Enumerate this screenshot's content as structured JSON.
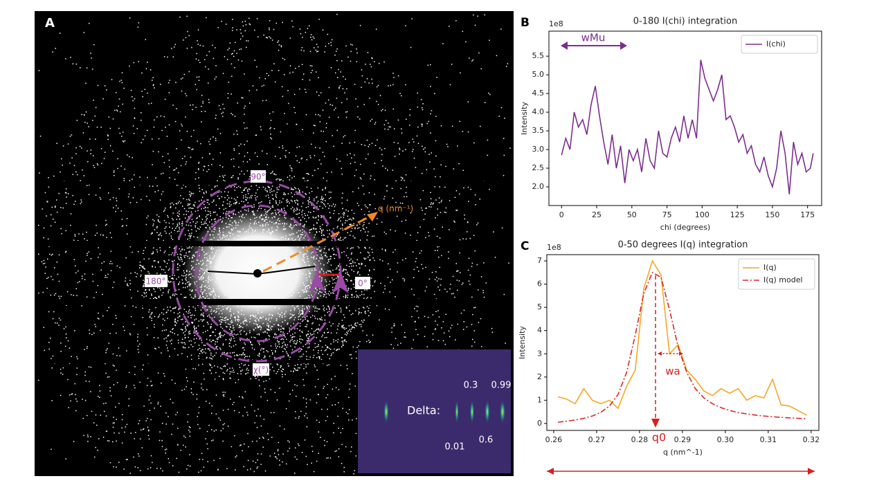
{
  "panel_a": {
    "label": "A",
    "angle_labels": [
      "90°",
      "180°",
      "0°"
    ],
    "chi_label": "χ(°)",
    "q_label": "q (nm⁻¹)",
    "inset": {
      "label": "Delta:",
      "values": [
        0.01,
        0.3,
        0.6,
        0.99
      ]
    }
  },
  "chart_data": [
    {
      "type": "line",
      "panel_label": "B",
      "title": "0-180 I(chi) integration",
      "xlabel": "chi (degrees)",
      "ylabel": "Intensity",
      "offset_text": "1e8",
      "x": [
        0,
        3,
        6,
        9,
        12,
        15,
        18,
        21,
        24,
        27,
        30,
        33,
        36,
        39,
        42,
        45,
        48,
        51,
        54,
        57,
        60,
        63,
        66,
        69,
        72,
        75,
        78,
        81,
        84,
        87,
        90,
        93,
        96,
        99,
        102,
        105,
        108,
        111,
        114,
        117,
        120,
        123,
        126,
        129,
        132,
        135,
        138,
        141,
        144,
        147,
        150,
        153,
        156,
        159,
        162,
        165,
        168,
        171,
        174,
        177,
        179
      ],
      "series": [
        {
          "name": "I(chi)",
          "color": "#7b2d8e",
          "values": [
            2.85,
            3.3,
            3.0,
            4.0,
            3.6,
            3.8,
            3.4,
            4.2,
            4.7,
            3.9,
            3.2,
            2.6,
            3.4,
            2.5,
            3.1,
            2.1,
            3.0,
            2.7,
            3.0,
            2.4,
            3.3,
            2.7,
            2.5,
            3.5,
            2.9,
            2.8,
            3.3,
            3.6,
            3.2,
            3.9,
            3.3,
            3.8,
            3.3,
            5.4,
            4.9,
            4.6,
            4.3,
            4.6,
            5.0,
            3.8,
            3.9,
            3.6,
            3.2,
            3.4,
            2.9,
            3.1,
            2.6,
            2.4,
            2.8,
            2.3,
            2.0,
            2.5,
            3.5,
            2.9,
            1.8,
            3.2,
            2.6,
            2.9,
            2.4,
            2.5,
            2.9
          ]
        }
      ],
      "xlim": [
        -9,
        185
      ],
      "xticks": [
        0,
        25,
        50,
        75,
        100,
        125,
        150,
        175
      ],
      "ylim": [
        1.5,
        6.17
      ],
      "yticks": [
        {
          "value": 2,
          "label": "2.0"
        },
        {
          "value": 2.5,
          "label": "2.5"
        },
        {
          "value": 3,
          "label": "3.0"
        },
        {
          "value": 3.5,
          "label": "3.5"
        },
        {
          "value": 4,
          "label": "4.0"
        },
        {
          "value": 4.5,
          "label": "4.5"
        },
        {
          "value": 5,
          "label": "5.0"
        },
        {
          "value": 5.5,
          "label": "5.5"
        }
      ],
      "legend": "upper right",
      "annotations": [
        "wMu"
      ]
    },
    {
      "type": "line",
      "panel_label": "C",
      "title": "0-50 degrees I(q) integration",
      "xlabel": "q (nm^-1)",
      "ylabel": "Intensity",
      "offset_text": "1e8",
      "x": [
        0.261,
        0.263,
        0.265,
        0.267,
        0.269,
        0.271,
        0.273,
        0.275,
        0.277,
        0.279,
        0.281,
        0.283,
        0.285,
        0.287,
        0.289,
        0.291,
        0.293,
        0.295,
        0.297,
        0.299,
        0.301,
        0.303,
        0.305,
        0.307,
        0.309,
        0.311,
        0.313,
        0.315,
        0.317,
        0.319
      ],
      "series": [
        {
          "name": "I(q)",
          "color": "#f5a623",
          "dash": "solid",
          "values": [
            1.15,
            1.05,
            0.85,
            1.5,
            1.0,
            0.85,
            1.0,
            0.65,
            1.6,
            2.3,
            5.8,
            7.0,
            6.4,
            3.0,
            3.4,
            2.3,
            1.9,
            1.4,
            1.2,
            1.5,
            1.3,
            1.5,
            1.0,
            1.2,
            1.1,
            1.9,
            0.8,
            0.75,
            0.55,
            0.35
          ]
        },
        {
          "name": "I(q) model",
          "color": "#d62728",
          "dash": "dashdot",
          "values": [
            0.05,
            0.1,
            0.15,
            0.22,
            0.32,
            0.48,
            0.75,
            1.25,
            2.2,
            3.8,
            5.6,
            6.5,
            6.3,
            4.9,
            3.3,
            2.2,
            1.5,
            1.1,
            0.85,
            0.68,
            0.56,
            0.47,
            0.41,
            0.36,
            0.32,
            0.29,
            0.26,
            0.24,
            0.22,
            0.2
          ]
        }
      ],
      "xlim": [
        0.2584,
        0.3218
      ],
      "xticks": [
        0.26,
        0.27,
        0.28,
        0.29,
        {
          "value": 0.3,
          "label": "0.30"
        },
        0.31,
        0.32
      ],
      "ylim": [
        -0.3,
        7.27
      ],
      "yticks": [
        0,
        1,
        2,
        3,
        4,
        5,
        6,
        7
      ],
      "legend": "upper right",
      "annotations": [
        "wa",
        "q0"
      ]
    }
  ]
}
